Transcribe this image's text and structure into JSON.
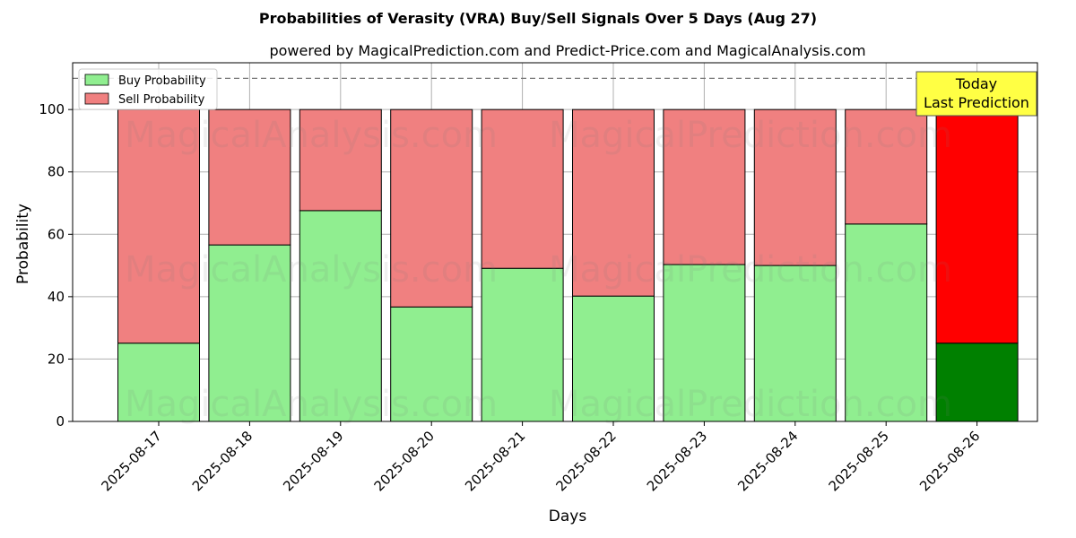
{
  "chart_data": {
    "type": "bar",
    "title": "Probabilities of Verasity (VRA) Buy/Sell Signals Over 5 Days (Aug 27)",
    "subtitle": "powered by MagicalPrediction.com and Predict-Price.com and MagicalAnalysis.com",
    "xlabel": "Days",
    "ylabel": "Probability",
    "ylim": [
      0,
      115
    ],
    "yticks": [
      0,
      20,
      40,
      60,
      80,
      100
    ],
    "grid": true,
    "stacked": true,
    "reference_line": 110,
    "legend_position": "top-left",
    "categories": [
      "2025-08-17",
      "2025-08-18",
      "2025-08-19",
      "2025-08-20",
      "2025-08-21",
      "2025-08-22",
      "2025-08-23",
      "2025-08-24",
      "2025-08-25",
      "2025-08-26"
    ],
    "series": [
      {
        "name": "Buy Probability",
        "values": [
          25.1,
          56.6,
          67.6,
          36.7,
          49.1,
          40.2,
          50.3,
          50.0,
          63.3,
          25.1
        ]
      },
      {
        "name": "Sell Probability",
        "values": [
          74.9,
          43.4,
          32.4,
          63.3,
          50.9,
          59.8,
          49.7,
          50.0,
          36.7,
          74.9
        ]
      }
    ],
    "colors": {
      "buy": "#90ee90",
      "sell": "#f08080",
      "buy_today": "#008000",
      "sell_today": "#ff0000",
      "today_box": "#ffff44"
    },
    "annotation": {
      "line1": "Today",
      "line2": "Last Prediction"
    },
    "watermarks": [
      "MagicalAnalysis.com",
      "MagicalPrediction.com"
    ]
  }
}
